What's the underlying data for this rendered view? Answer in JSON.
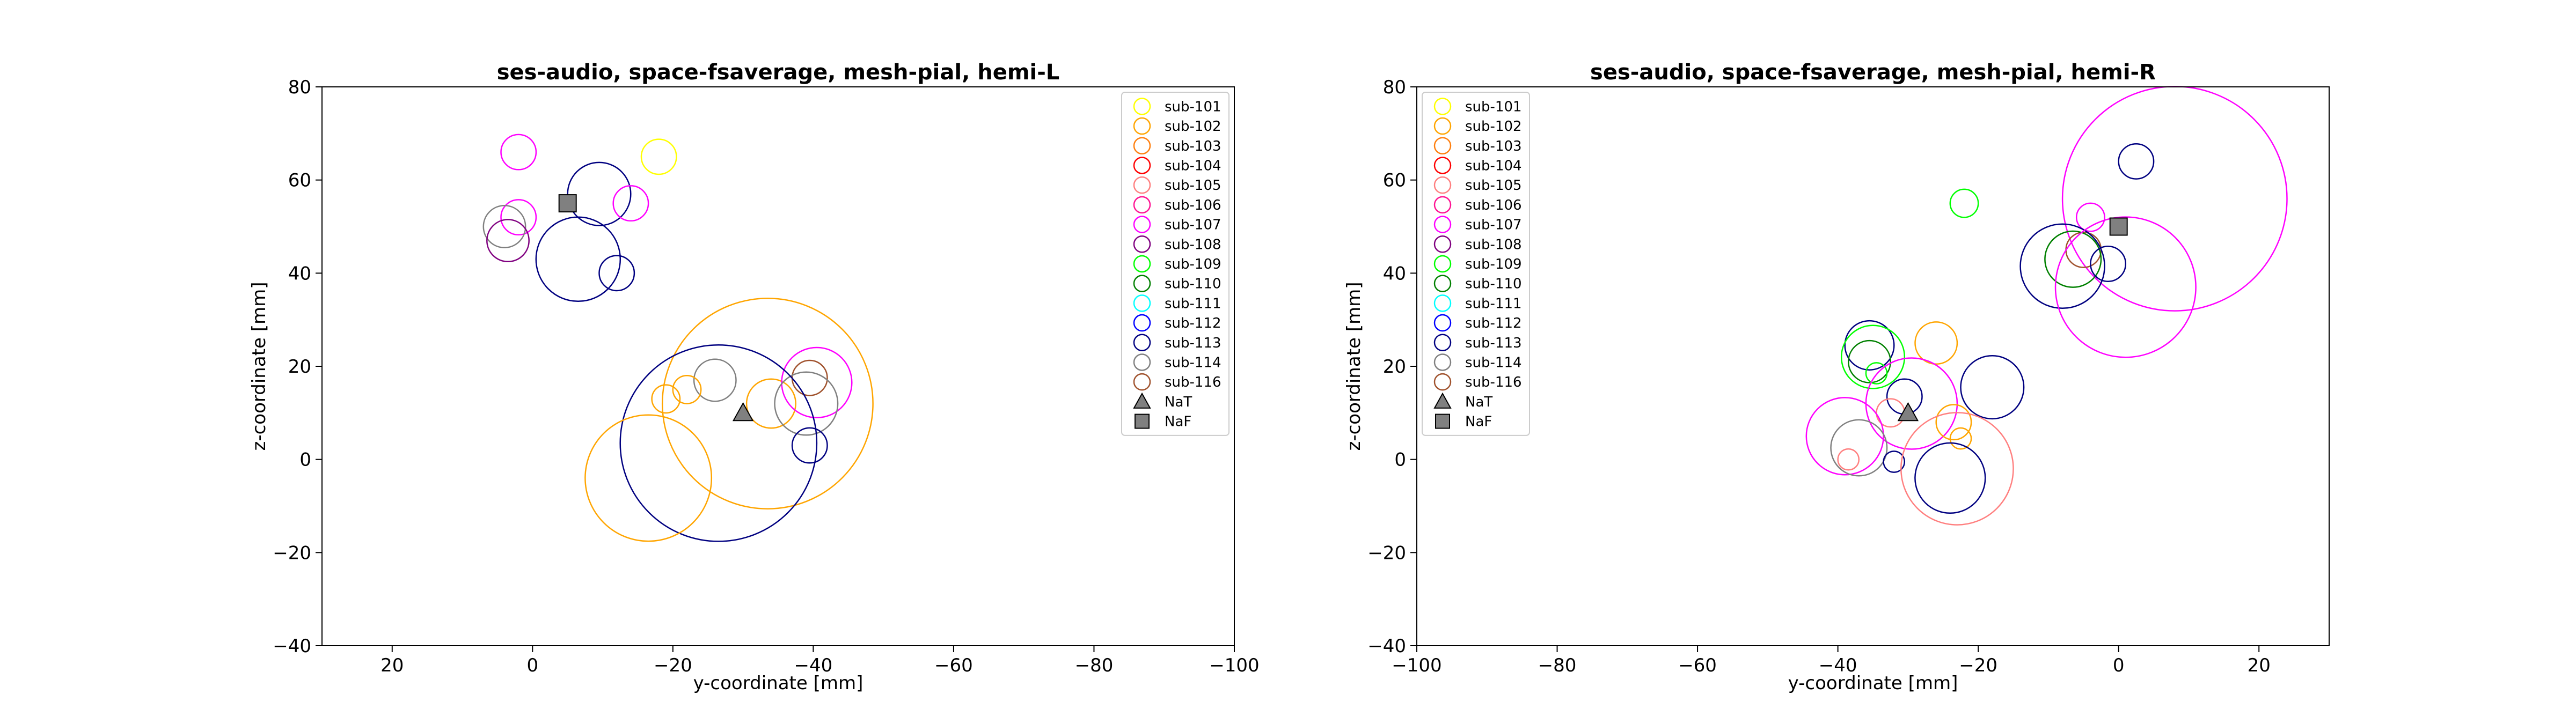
{
  "chart_data": [
    {
      "type": "scatter",
      "title": "ses-audio, space-fsaverage, mesh-pial, hemi-L",
      "xlabel": "y-coordinate [mm]",
      "ylabel": "z-coordinate [mm]",
      "xlim": [
        30,
        -100
      ],
      "ylim": [
        -40,
        80
      ],
      "xticks": [
        20,
        0,
        -20,
        -40,
        -60,
        -80,
        -100
      ],
      "yticks": [
        -40,
        -20,
        0,
        20,
        40,
        60,
        80
      ],
      "xtick_labels": [
        "20",
        "0",
        "−20",
        "−40",
        "−60",
        "−80",
        "−100"
      ],
      "ytick_labels": [
        "−40",
        "−20",
        "0",
        "20",
        "40",
        "60",
        "80"
      ],
      "legend_position": "top-right",
      "grid": false,
      "points": [
        {
          "subject": "sub-101",
          "x": -18,
          "y": 65,
          "size": 2.5
        },
        {
          "subject": "sub-107",
          "x": 2,
          "y": 66,
          "size": 2.5
        },
        {
          "subject": "sub-107",
          "x": 2,
          "y": 52,
          "size": 2.5
        },
        {
          "subject": "sub-113",
          "x": -9.5,
          "y": 57,
          "size": 4.5
        },
        {
          "subject": "sub-107",
          "x": -14,
          "y": 55,
          "size": 2.5
        },
        {
          "subject": "sub-114",
          "x": 4,
          "y": 50,
          "size": 3
        },
        {
          "subject": "sub-108",
          "x": 3.5,
          "y": 47,
          "size": 3
        },
        {
          "subject": "sub-113",
          "x": -6.5,
          "y": 43,
          "size": 6
        },
        {
          "subject": "sub-113",
          "x": -12,
          "y": 40,
          "size": 2.5
        },
        {
          "subject": "sub-102",
          "x": -33.5,
          "y": 12,
          "size": 15
        },
        {
          "subject": "sub-114",
          "x": -26,
          "y": 17,
          "size": 3
        },
        {
          "subject": "sub-102",
          "x": -22,
          "y": 15,
          "size": 2
        },
        {
          "subject": "sub-102",
          "x": -19,
          "y": 13,
          "size": 2
        },
        {
          "subject": "sub-102",
          "x": -34,
          "y": 12,
          "size": 3.5
        },
        {
          "subject": "sub-107",
          "x": -40.5,
          "y": 16.5,
          "size": 5
        },
        {
          "subject": "sub-116",
          "x": -39.5,
          "y": 17.5,
          "size": 2.5
        },
        {
          "subject": "sub-114",
          "x": -39,
          "y": 12,
          "size": 4.5
        },
        {
          "subject": "sub-113",
          "x": -26.5,
          "y": 3.5,
          "size": 14
        },
        {
          "subject": "sub-102",
          "x": -16.5,
          "y": -4,
          "size": 9
        },
        {
          "subject": "sub-113",
          "x": -39.5,
          "y": 3,
          "size": 2.5
        }
      ],
      "markers": [
        {
          "label": "NaT",
          "x": -30,
          "y": 10
        },
        {
          "label": "NaF",
          "x": -5,
          "y": 55
        }
      ]
    },
    {
      "type": "scatter",
      "title": "ses-audio, space-fsaverage, mesh-pial, hemi-R",
      "xlabel": "y-coordinate [mm]",
      "ylabel": "z-coordinate [mm]",
      "xlim": [
        -100,
        30
      ],
      "ylim": [
        -40,
        80
      ],
      "xticks": [
        -100,
        -80,
        -60,
        -40,
        -20,
        0,
        20
      ],
      "yticks": [
        -40,
        -20,
        0,
        20,
        40,
        60,
        80
      ],
      "xtick_labels": [
        "−100",
        "−80",
        "−60",
        "−40",
        "−20",
        "0",
        "20"
      ],
      "ytick_labels": [
        "−40",
        "−20",
        "0",
        "20",
        "40",
        "60",
        "80"
      ],
      "legend_position": "top-left",
      "grid": false,
      "points": [
        {
          "subject": "sub-107",
          "x": 8,
          "y": 56,
          "size": 16
        },
        {
          "subject": "sub-113",
          "x": 2.5,
          "y": 64,
          "size": 2.5
        },
        {
          "subject": "sub-109",
          "x": -22,
          "y": 55,
          "size": 2
        },
        {
          "subject": "sub-107",
          "x": -4,
          "y": 52,
          "size": 2
        },
        {
          "subject": "sub-116",
          "x": -5,
          "y": 45,
          "size": 2.5
        },
        {
          "subject": "sub-110",
          "x": -6.5,
          "y": 43,
          "size": 4
        },
        {
          "subject": "sub-113",
          "x": -8,
          "y": 41.5,
          "size": 6
        },
        {
          "subject": "sub-113",
          "x": -1.5,
          "y": 42,
          "size": 2.5
        },
        {
          "subject": "sub-107",
          "x": 1,
          "y": 37,
          "size": 10
        },
        {
          "subject": "sub-113",
          "x": -35.5,
          "y": 24.5,
          "size": 3.5
        },
        {
          "subject": "sub-102",
          "x": -26,
          "y": 25,
          "size": 3
        },
        {
          "subject": "sub-109",
          "x": -35,
          "y": 22,
          "size": 4.5
        },
        {
          "subject": "sub-110",
          "x": -35.5,
          "y": 21,
          "size": 3
        },
        {
          "subject": "sub-109",
          "x": -34.5,
          "y": 18.5,
          "size": 1.5
        },
        {
          "subject": "sub-113",
          "x": -18,
          "y": 15.5,
          "size": 4.5
        },
        {
          "subject": "sub-113",
          "x": -30.5,
          "y": 13.5,
          "size": 2.5
        },
        {
          "subject": "sub-107",
          "x": -29.5,
          "y": 12,
          "size": 6.5
        },
        {
          "subject": "sub-105",
          "x": -32.5,
          "y": 10,
          "size": 2
        },
        {
          "subject": "sub-102",
          "x": -23.5,
          "y": 8,
          "size": 2.5
        },
        {
          "subject": "sub-107",
          "x": -39,
          "y": 5,
          "size": 5.5
        },
        {
          "subject": "sub-102",
          "x": -22.5,
          "y": 4.5,
          "size": 1.5
        },
        {
          "subject": "sub-114",
          "x": -37,
          "y": 2.5,
          "size": 4
        },
        {
          "subject": "sub-105",
          "x": -38.5,
          "y": 0,
          "size": 1.5
        },
        {
          "subject": "sub-113",
          "x": -32,
          "y": -0.5,
          "size": 1.5
        },
        {
          "subject": "sub-105",
          "x": -23,
          "y": -2,
          "size": 8
        },
        {
          "subject": "sub-113",
          "x": -24,
          "y": -4,
          "size": 5
        }
      ],
      "markers": [
        {
          "label": "NaT",
          "x": -30,
          "y": 10
        },
        {
          "label": "NaF",
          "x": 0,
          "y": 50
        }
      ]
    }
  ],
  "legend": {
    "entries": [
      {
        "label": "sub-101",
        "color": "#ffff00"
      },
      {
        "label": "sub-102",
        "color": "#ffa500"
      },
      {
        "label": "sub-103",
        "color": "#ff7f0e"
      },
      {
        "label": "sub-104",
        "color": "#ff0000"
      },
      {
        "label": "sub-105",
        "color": "#ff7f7f"
      },
      {
        "label": "sub-106",
        "color": "#ff1493"
      },
      {
        "label": "sub-107",
        "color": "#ff00ff"
      },
      {
        "label": "sub-108",
        "color": "#800080"
      },
      {
        "label": "sub-109",
        "color": "#00ff00"
      },
      {
        "label": "sub-110",
        "color": "#008000"
      },
      {
        "label": "sub-111",
        "color": "#00ffff"
      },
      {
        "label": "sub-112",
        "color": "#0000ff"
      },
      {
        "label": "sub-113",
        "color": "#000080"
      },
      {
        "label": "sub-114",
        "color": "#808080"
      },
      {
        "label": "sub-116",
        "color": "#a0522d"
      }
    ],
    "marker_entries": [
      {
        "label": "NaT",
        "shape": "triangle",
        "color": "#808080"
      },
      {
        "label": "NaF",
        "shape": "square",
        "color": "#808080"
      }
    ]
  }
}
